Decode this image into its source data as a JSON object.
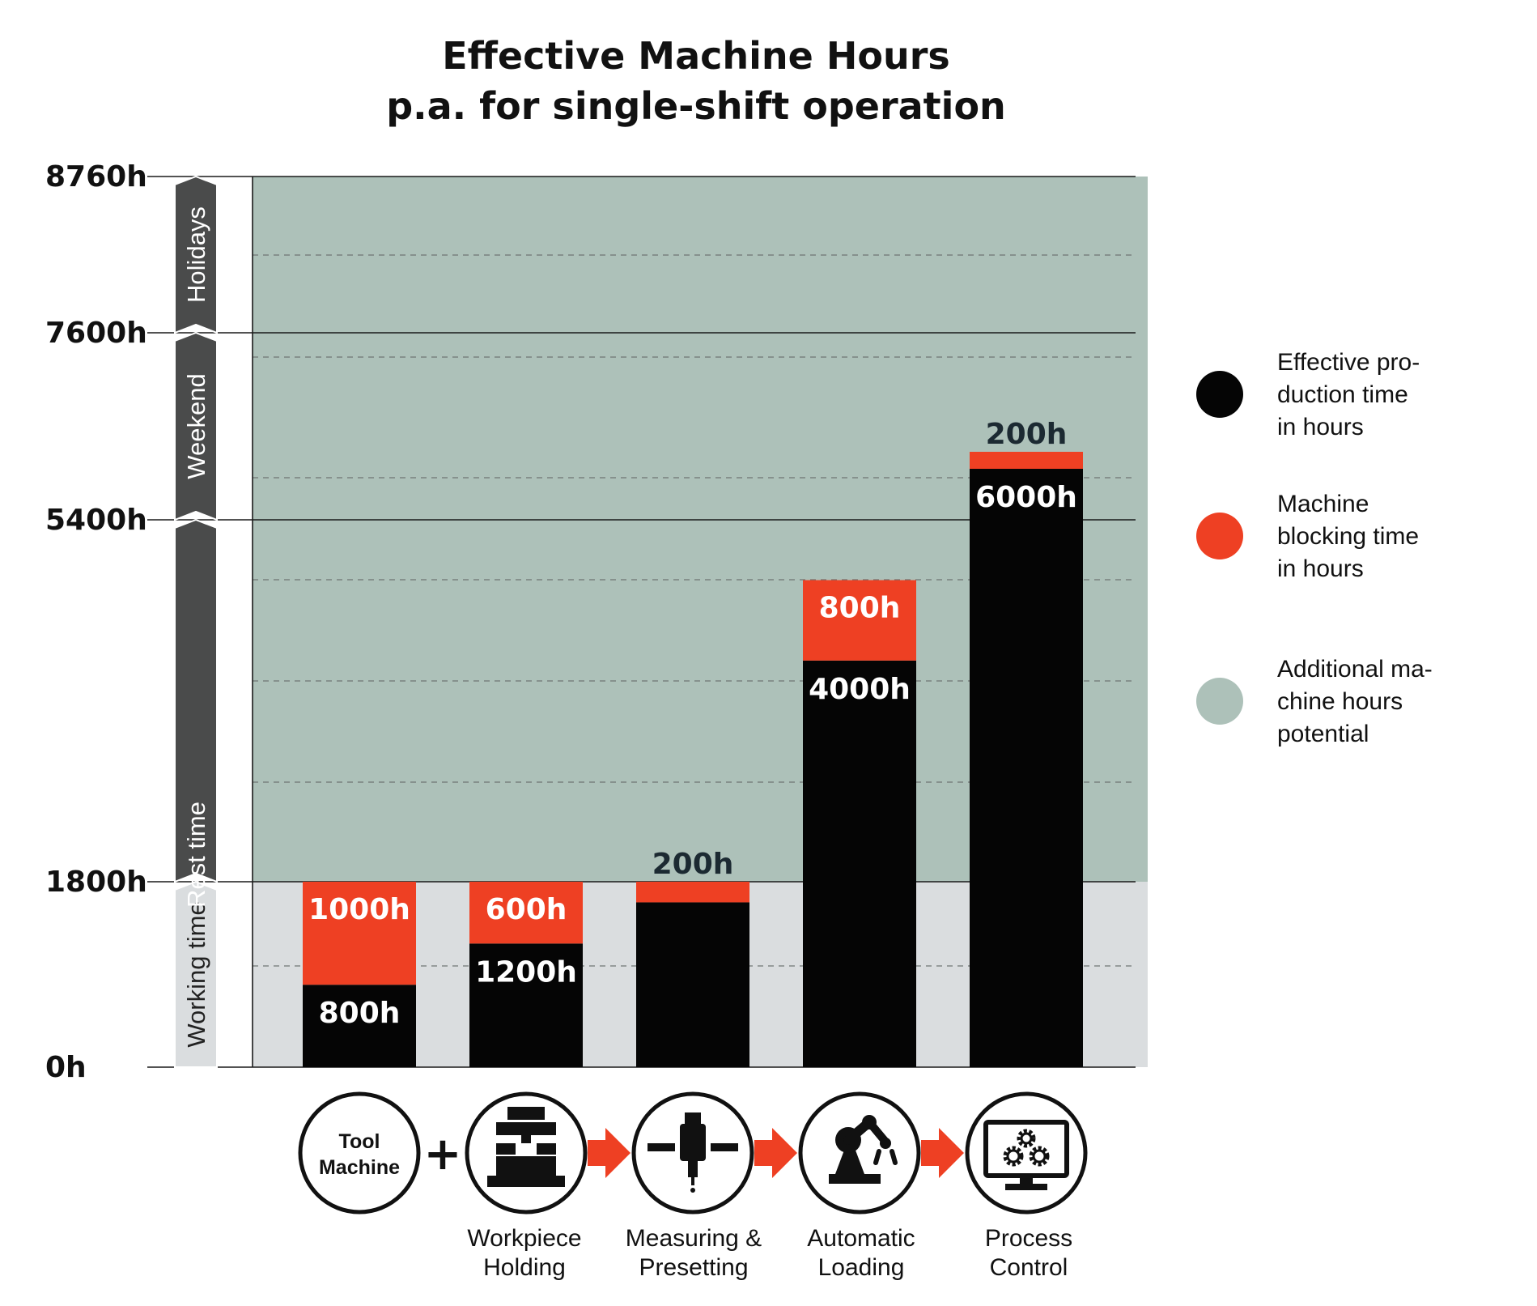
{
  "title": {
    "line1": "Effective Machine Hours",
    "line2": "p.a. for single-shift operation"
  },
  "chart_data": {
    "type": "bar",
    "stacked": true,
    "title": "Effective Machine Hours p.a. for single-shift operation",
    "ylim": [
      0,
      8760
    ],
    "y_ticks": [
      "0h",
      "1800h",
      "5400h",
      "7600h",
      "8760h"
    ],
    "y_tick_values": [
      0,
      1800,
      5400,
      7600,
      8760
    ],
    "minor_gridlines": true,
    "categories": [
      "Tool Machine",
      "Workpiece Holding",
      "Measuring & Presetting",
      "Automatic Loading",
      "Process Control"
    ],
    "series": [
      {
        "name": "Effective production time in hours",
        "color": "#050505",
        "values": [
          800,
          1200,
          1600,
          4000,
          6000
        ],
        "labels": [
          "800h",
          "1200h",
          "",
          "4000h",
          "6000h"
        ]
      },
      {
        "name": "Machine blocking time in hours",
        "color": "#ee4023",
        "values": [
          1000,
          600,
          200,
          800,
          200
        ],
        "labels": [
          "1000h",
          "600h",
          "200h",
          "800h",
          "200h"
        ]
      }
    ],
    "background_bands": [
      {
        "name": "Working time",
        "from": 0,
        "to": 1800,
        "color": "#dadddf"
      },
      {
        "name": "Additional machine hours potential",
        "from": 1800,
        "to": 8760,
        "color": "#adc1b9"
      }
    ],
    "time_segments": [
      {
        "label": "Working time",
        "from": 0,
        "to": 1800
      },
      {
        "label": "Rest time",
        "from": 1800,
        "to": 5400
      },
      {
        "label": "Weekend",
        "from": 5400,
        "to": 7600
      },
      {
        "label": "Holidays",
        "from": 7600,
        "to": 8760
      }
    ],
    "legend_position": "right"
  },
  "legend": [
    {
      "label": "Effective pro-\nduction time\nin hours",
      "color": "#050505"
    },
    {
      "label": "Machine\nblocking time\nin hours",
      "color": "#ee4023"
    },
    {
      "label": "Additional ma-\nchine hours\npotential",
      "color": "#adc1b9"
    }
  ],
  "steps": {
    "tool_machine": {
      "label": "Tool\nMachine",
      "icon": "tool-machine-text-icon"
    },
    "plus_sign": "+",
    "items": [
      {
        "label": "Workpiece\nHolding",
        "icon": "workpiece-holding-icon"
      },
      {
        "label": "Measuring &\nPresetting",
        "icon": "measuring-presetting-icon"
      },
      {
        "label": "Automatic\nLoading",
        "icon": "robot-arm-icon"
      },
      {
        "label": "Process\nControl",
        "icon": "monitor-gears-icon"
      }
    ]
  }
}
